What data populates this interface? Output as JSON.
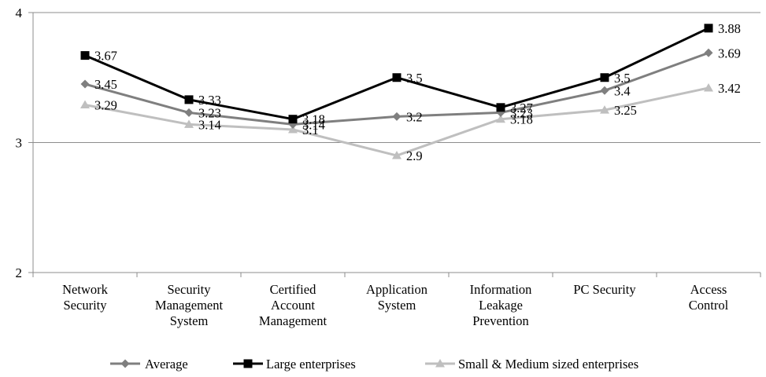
{
  "chart_data": {
    "type": "line",
    "categories": [
      [
        "Network",
        "Security"
      ],
      [
        "Security",
        "Management",
        "System"
      ],
      [
        "Certified",
        "Account",
        "Management"
      ],
      [
        "Application",
        "System"
      ],
      [
        "Information",
        "Leakage",
        "Prevention"
      ],
      [
        "PC Security"
      ],
      [
        "Access",
        "Control"
      ]
    ],
    "ylim": [
      2,
      4
    ],
    "yticks": [
      2,
      3,
      4
    ],
    "grid": true,
    "legend_position": "bottom",
    "series": [
      {
        "name": "Average",
        "values": [
          3.45,
          3.23,
          3.14,
          3.2,
          3.23,
          3.4,
          3.69
        ],
        "labels": [
          "3.45",
          "3.23",
          "3.14",
          "3.2",
          "3.23",
          "3.4",
          "3.69"
        ],
        "color": "#7f7f7f",
        "marker": "diamond"
      },
      {
        "name": "Large enterprises",
        "values": [
          3.67,
          3.33,
          3.18,
          3.5,
          3.27,
          3.5,
          3.88
        ],
        "labels": [
          "3.67",
          "3.33",
          "3.18",
          "3.5",
          "3.27",
          "3.5",
          "3.88"
        ],
        "color": "#000000",
        "marker": "square"
      },
      {
        "name": "Small & Medium sized enterprises",
        "values": [
          3.29,
          3.14,
          3.1,
          2.9,
          3.18,
          3.25,
          3.42
        ],
        "labels": [
          "3.29",
          "3.14",
          "3.1",
          "2.9",
          "3.18",
          "3.25",
          "3.42"
        ],
        "color": "#bfbfbf",
        "marker": "triangle"
      }
    ]
  }
}
